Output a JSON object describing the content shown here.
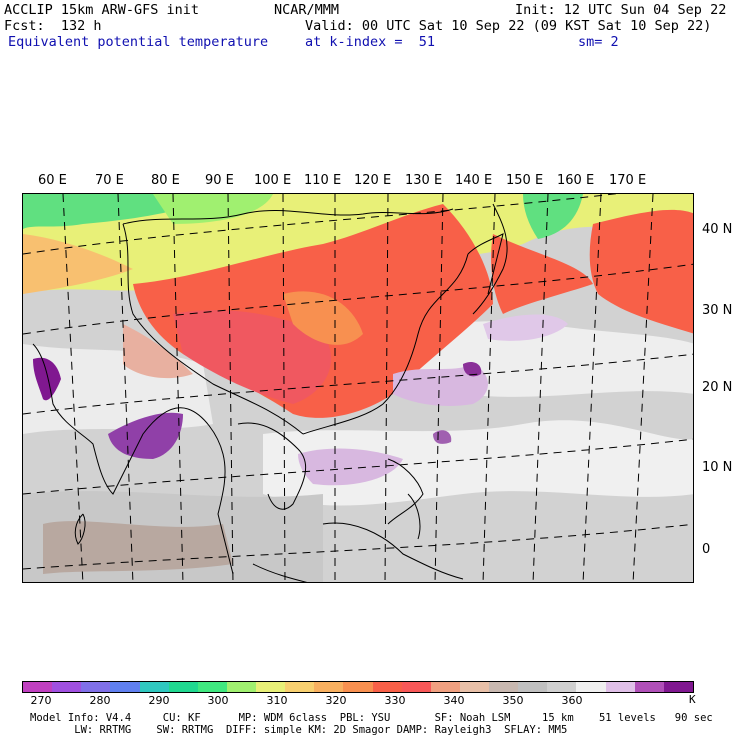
{
  "header": {
    "model_title": "ACCLIP 15km ARW-GFS init",
    "org": "NCAR/MMM",
    "init": "Init: 12 UTC Sun 04 Sep 22",
    "forecast": "Fcst:  132 h",
    "valid": "Valid: 00 UTC Sat 10 Sep 22 (09 KST Sat 10 Sep 22)",
    "field_name": "Equivalent potential temperature",
    "level": "at k-index =  51",
    "smoothing": "sm= 2"
  },
  "map": {
    "longitude_labels": [
      "60 E",
      "70 E",
      "80 E",
      "90 E",
      "100 E",
      "110 E",
      "120 E",
      "130 E",
      "140 E",
      "150 E",
      "160 E",
      "170 E"
    ],
    "latitude_labels": [
      "40 N",
      "30 N",
      "20 N",
      "10 N",
      "0"
    ]
  },
  "colorbar": {
    "unit": "K",
    "tick_labels": [
      "270",
      "280",
      "290",
      "300",
      "310",
      "320",
      "330",
      "340",
      "350",
      "360"
    ],
    "colors": [
      "#c040c0",
      "#a050e0",
      "#8070e8",
      "#6080f0",
      "#30c8c0",
      "#20d890",
      "#40e880",
      "#a0f070",
      "#e8f078",
      "#f8d070",
      "#f8b060",
      "#f89050",
      "#f86048",
      "#f85858",
      "#f0a080",
      "#e8c0a8",
      "#c8b8b0",
      "#c0c0c0",
      "#d0d0d0",
      "#f0f0f0",
      "#e0c0e8",
      "#b050b8",
      "#801890"
    ]
  },
  "footer": {
    "line1": "Model Info: V4.4     CU: KF      MP: WDM 6class  PBL: YSU       SF: Noah LSM     15 km    51 levels   90 sec",
    "line2": "       LW: RRTMG    SW: RRTMG  DIFF: simple KM: 2D Smagor DAMP: Rayleigh3  SFLAY: MM5"
  }
}
